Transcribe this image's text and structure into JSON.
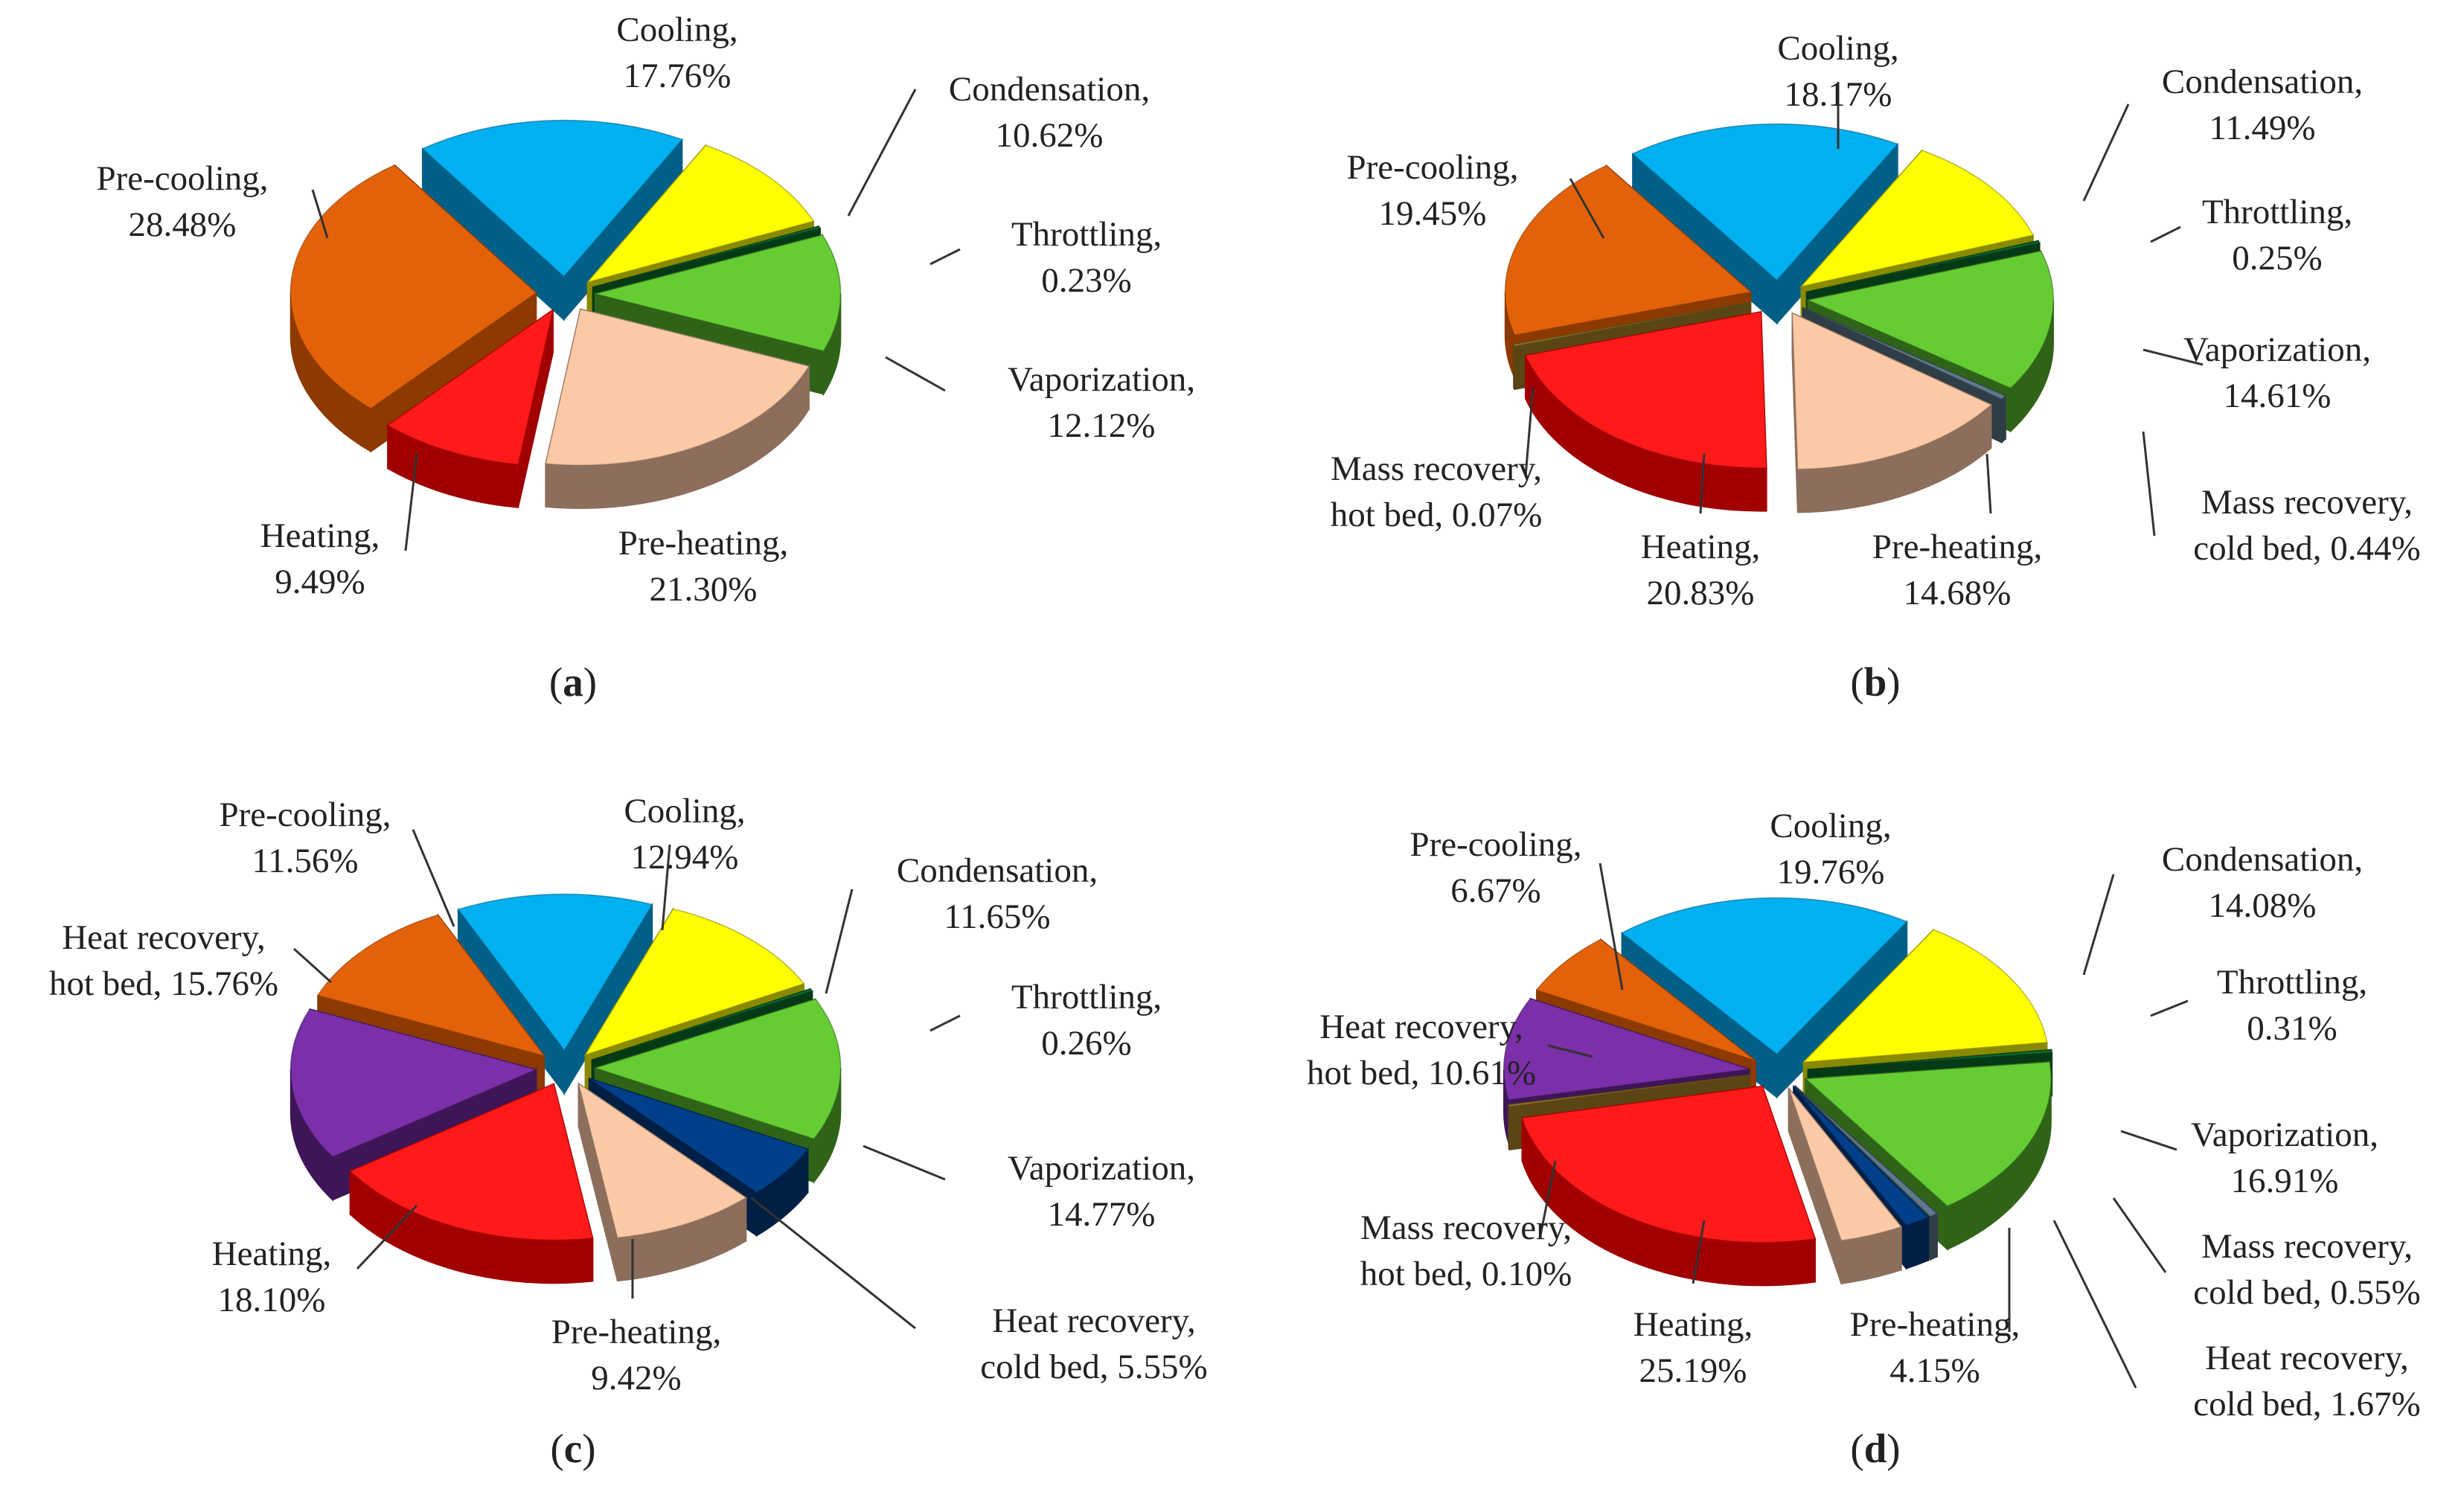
{
  "chart_data": [
    {
      "type": "pie",
      "caption": "(a)",
      "panel_letter": "a",
      "title": "",
      "slices": [
        {
          "label": "Cooling,",
          "value_text": "17.76%",
          "value": 17.76,
          "color": "#00B0F0",
          "side_color": "#005F86"
        },
        {
          "label": "Condensation,",
          "value_text": "10.62%",
          "value": 10.62,
          "color": "#FFFF00",
          "side_color": "#8A8A00"
        },
        {
          "label": "Throttling,",
          "value_text": "0.23%",
          "value": 0.23,
          "color": "#0B6B2C",
          "side_color": "#053A17"
        },
        {
          "label": "Vaporization,",
          "value_text": "12.12%",
          "value": 12.12,
          "color": "#66CC33",
          "side_color": "#2F6418"
        },
        {
          "label": "Pre-heating,",
          "value_text": "21.30%",
          "value": 21.3,
          "color": "#FCC9A6",
          "side_color": "#8C6E5C"
        },
        {
          "label": "Heating,",
          "value_text": "9.49%",
          "value": 9.49,
          "color": "#FF1A1A",
          "side_color": "#A00000"
        },
        {
          "label": "Pre-cooling,",
          "value_text": "28.48%",
          "value": 28.48,
          "color": "#E36209",
          "side_color": "#8C3A00"
        }
      ]
    },
    {
      "type": "pie",
      "caption": "(b)",
      "panel_letter": "b",
      "title": "",
      "slices": [
        {
          "label": "Cooling,",
          "value_text": "18.17%",
          "value": 18.17,
          "color": "#00B0F0",
          "side_color": "#005F86"
        },
        {
          "label": "Condensation,",
          "value_text": "11.49%",
          "value": 11.49,
          "color": "#FFFF00",
          "side_color": "#8A8A00"
        },
        {
          "label": "Throttling,",
          "value_text": "0.25%",
          "value": 0.25,
          "color": "#0B6B2C",
          "side_color": "#053A17"
        },
        {
          "label": "Vaporization,",
          "value_text": "14.61%",
          "value": 14.61,
          "color": "#66CC33",
          "side_color": "#2F6418"
        },
        {
          "label": "Mass recovery,",
          "label2": "cold bed,",
          "value_text": "0.44%",
          "value": 0.44,
          "color": "#5C7A8C",
          "side_color": "#2E3D46"
        },
        {
          "label": "Pre-heating,",
          "value_text": "14.68%",
          "value": 14.68,
          "color": "#FCC9A6",
          "side_color": "#8C6E5C"
        },
        {
          "label": "Heating,",
          "value_text": "20.83%",
          "value": 20.83,
          "color": "#FF1A1A",
          "side_color": "#A00000"
        },
        {
          "label": "Mass recovery,",
          "label2": "hot bed,",
          "value_text": "0.07%",
          "value": 0.07,
          "color": "#9C7B2A",
          "side_color": "#5A4515"
        },
        {
          "label": "Pre-cooling,",
          "value_text": "19.45%",
          "value": 19.45,
          "color": "#E36209",
          "side_color": "#8C3A00"
        }
      ]
    },
    {
      "type": "pie",
      "caption": "(c)",
      "panel_letter": "c",
      "title": "",
      "slices": [
        {
          "label": "Cooling,",
          "value_text": "12.94%",
          "value": 12.94,
          "color": "#00B0F0",
          "side_color": "#005F86"
        },
        {
          "label": "Condensation,",
          "value_text": "11.65%",
          "value": 11.65,
          "color": "#FFFF00",
          "side_color": "#8A8A00"
        },
        {
          "label": "Throttling,",
          "value_text": "0.26%",
          "value": 0.26,
          "color": "#0B6B2C",
          "side_color": "#053A17"
        },
        {
          "label": "Vaporization,",
          "value_text": "14.77%",
          "value": 14.77,
          "color": "#66CC33",
          "side_color": "#2F6418"
        },
        {
          "label": "Heat recovery,",
          "label2": "cold bed,",
          "value_text": "5.55%",
          "value": 5.55,
          "color": "#003F8A",
          "side_color": "#001F45"
        },
        {
          "label": "Pre-heating,",
          "value_text": "9.42%",
          "value": 9.42,
          "color": "#FCC9A6",
          "side_color": "#8C6E5C"
        },
        {
          "label": "Heating,",
          "value_text": "18.10%",
          "value": 18.1,
          "color": "#FF1A1A",
          "side_color": "#A00000"
        },
        {
          "label": "Heat recovery,",
          "label2": "hot bed,",
          "value_text": "15.76%",
          "value": 15.76,
          "color": "#7B2FA8",
          "side_color": "#3E1556"
        },
        {
          "label": "Pre-cooling,",
          "value_text": "11.56%",
          "value": 11.56,
          "color": "#E36209",
          "side_color": "#8C3A00"
        }
      ]
    },
    {
      "type": "pie",
      "caption": "(d)",
      "panel_letter": "d",
      "title": "",
      "slices": [
        {
          "label": "Cooling,",
          "value_text": "19.76%",
          "value": 19.76,
          "color": "#00B0F0",
          "side_color": "#005F86"
        },
        {
          "label": "Condensation,",
          "value_text": "14.08%",
          "value": 14.08,
          "color": "#FFFF00",
          "side_color": "#8A8A00"
        },
        {
          "label": "Throttling,",
          "value_text": "0.31%",
          "value": 0.31,
          "color": "#0B6B2C",
          "side_color": "#053A17"
        },
        {
          "label": "Vaporization,",
          "value_text": "16.91%",
          "value": 16.91,
          "color": "#66CC33",
          "side_color": "#2F6418"
        },
        {
          "label": "Mass recovery,",
          "label2": "cold bed,",
          "value_text": "0.55%",
          "value": 0.55,
          "color": "#5C7A8C",
          "side_color": "#2E3D46"
        },
        {
          "label": "Heat recovery,",
          "label2": "cold bed,",
          "value_text": "1.67%",
          "value": 1.67,
          "color": "#003F8A",
          "side_color": "#001F45"
        },
        {
          "label": "Pre-heating,",
          "value_text": "4.15%",
          "value": 4.15,
          "color": "#FCC9A6",
          "side_color": "#8C6E5C"
        },
        {
          "label": "Heating,",
          "value_text": "25.19%",
          "value": 25.19,
          "color": "#FF1A1A",
          "side_color": "#A00000"
        },
        {
          "label": "Mass recovery,",
          "label2": "hot bed,",
          "value_text": "0.10%",
          "value": 0.1,
          "color": "#9C7B2A",
          "side_color": "#5A4515"
        },
        {
          "label": "Heat recovery,",
          "label2": "hot bed,",
          "value_text": "10.61%",
          "value": 10.61,
          "color": "#7B2FA8",
          "side_color": "#3E1556"
        },
        {
          "label": "Pre-cooling,",
          "value_text": "6.67%",
          "value": 6.67,
          "color": "#E36209",
          "side_color": "#8C3A00"
        }
      ]
    }
  ]
}
